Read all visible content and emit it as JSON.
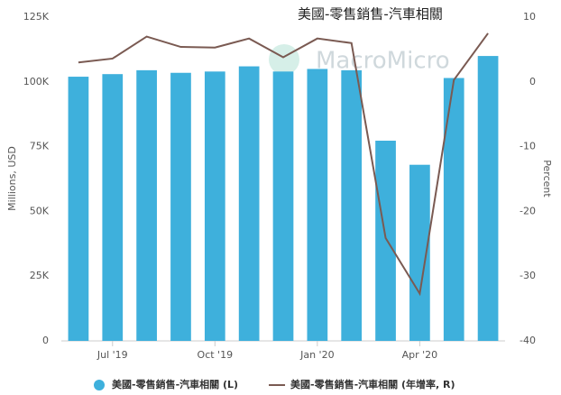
{
  "chart_data": {
    "type": "bar-line",
    "title": "美國-零售銷售-汽車相關",
    "watermark": "MacroMicro",
    "categories": [
      null,
      "Jul '19",
      null,
      null,
      "Oct '19",
      null,
      null,
      "Jan '20",
      null,
      null,
      "Apr '20",
      null,
      null
    ],
    "series": [
      {
        "name": "美國-零售銷售-汽車相關 (L)",
        "color": "#3eb0dc",
        "type": "bar",
        "axis": "y",
        "values": [
          102000,
          103000,
          104500,
          103500,
          104000,
          106000,
          104000,
          105000,
          104500,
          77300,
          68000,
          101500,
          110000
        ]
      },
      {
        "name": "美國-零售銷售-汽車相關 (年增率, R)",
        "color": "#7a5a52",
        "type": "line",
        "axis": "y2",
        "values": [
          3.0,
          3.6,
          7.0,
          5.4,
          5.3,
          6.7,
          3.8,
          6.7,
          6.0,
          -24.1,
          -32.7,
          0.3,
          7.5
        ]
      }
    ],
    "ylabel": "Millions, USD",
    "y2label": "Percent",
    "ylim": [
      0,
      125000
    ],
    "yticks": [
      0,
      {
        "value": 25000,
        "label": "25K"
      },
      {
        "value": 50000,
        "label": "50K"
      },
      {
        "value": 75000,
        "label": "75K"
      },
      {
        "value": 100000,
        "label": "100K"
      },
      {
        "value": 125000,
        "label": "125K"
      }
    ],
    "y2lim": [
      -40,
      10
    ],
    "y2ticks": [
      -40,
      -30,
      -20,
      -10,
      0,
      10
    ]
  }
}
